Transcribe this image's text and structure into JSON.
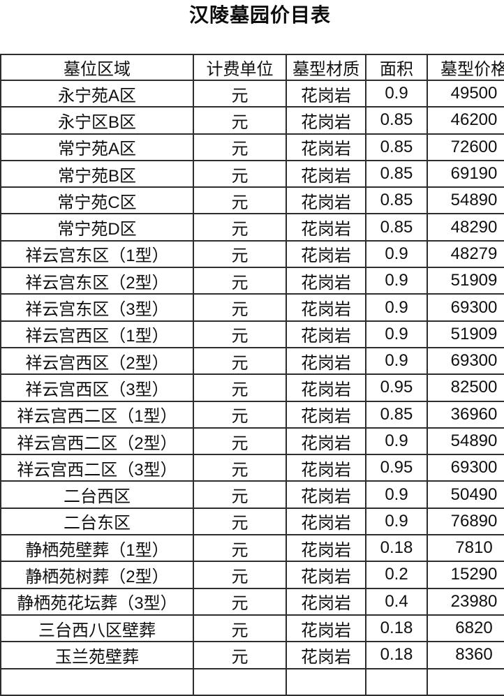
{
  "title": "汉陵墓园价目表",
  "colors": {
    "background": "#ffffff",
    "border": "#2d2d2d",
    "text": "#101010"
  },
  "table": {
    "headers": [
      "墓位区域",
      "计费单位",
      "墓型材质",
      "面积",
      "墓型价格"
    ],
    "rows": [
      [
        "永宁苑A区",
        "元",
        "花岗岩",
        "0.9",
        "49500"
      ],
      [
        "永宁区B区",
        "元",
        "花岗岩",
        "0.85",
        "46200"
      ],
      [
        "常宁苑A区",
        "元",
        "花岗岩",
        "0.85",
        "72600"
      ],
      [
        "常宁苑B区",
        "元",
        "花岗岩",
        "0.85",
        "69190"
      ],
      [
        "常宁苑C区",
        "元",
        "花岗岩",
        "0.85",
        "54890"
      ],
      [
        "常宁苑D区",
        "元",
        "花岗岩",
        "0.85",
        "48290"
      ],
      [
        "祥云宫东区（1型）",
        "元",
        "花岗岩",
        "0.9",
        "48279"
      ],
      [
        "祥云宫东区（2型）",
        "元",
        "花岗岩",
        "0.9",
        "51909"
      ],
      [
        "祥云宫东区（3型）",
        "元",
        "花岗岩",
        "0.9",
        "69300"
      ],
      [
        "祥云宫西区（1型）",
        "元",
        "花岗岩",
        "0.9",
        "51909"
      ],
      [
        "祥云宫西区（2型）",
        "元",
        "花岗岩",
        "0.9",
        "69300"
      ],
      [
        "祥云宫西区（3型）",
        "元",
        "花岗岩",
        "0.95",
        "82500"
      ],
      [
        "祥云宫西二区（1型）",
        "元",
        "花岗岩",
        "0.85",
        "36960"
      ],
      [
        "祥云宫西二区（2型）",
        "元",
        "花岗岩",
        "0.9",
        "54890"
      ],
      [
        "祥云宫西二区（3型）",
        "元",
        "花岗岩",
        "0.95",
        "69300"
      ],
      [
        "二台西区",
        "元",
        "花岗岩",
        "0.9",
        "50490"
      ],
      [
        "二台东区",
        "元",
        "花岗岩",
        "0.9",
        "76890"
      ],
      [
        "静栖苑壁葬（1型）",
        "元",
        "花岗岩",
        "0.18",
        "7810"
      ],
      [
        "静栖苑树葬（2型）",
        "元",
        "花岗岩",
        "0.2",
        "15290"
      ],
      [
        "静栖苑花坛葬（3型）",
        "元",
        "花岗岩",
        "0.4",
        "23980"
      ],
      [
        "三台西八区壁葬",
        "元",
        "花岗岩",
        "0.18",
        "6820"
      ],
      [
        "玉兰苑壁葬",
        "元",
        "花岗岩",
        "0.18",
        "8360"
      ],
      [
        "",
        "",
        "",
        "",
        ""
      ]
    ]
  }
}
